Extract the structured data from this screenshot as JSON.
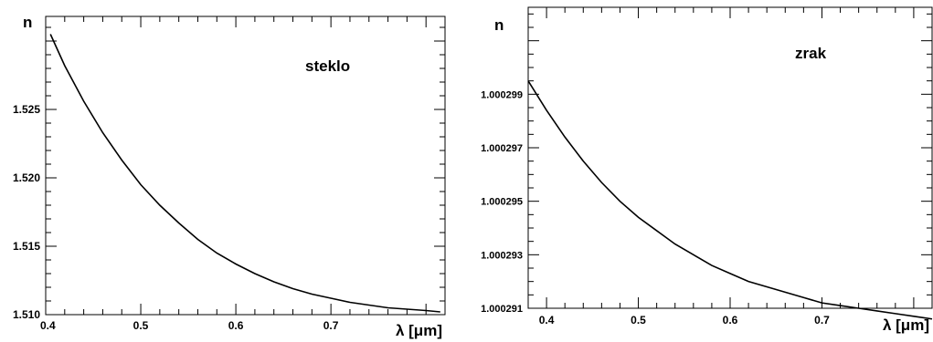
{
  "chart_data": [
    {
      "type": "line",
      "title": "",
      "annotation": "steklo",
      "xlabel": "λ [μm]",
      "ylabel": "n",
      "xlim": [
        0.4,
        0.82
      ],
      "ylim": [
        1.51,
        1.5318
      ],
      "x_ticks": [
        "0.4",
        "0.5",
        "0.6",
        "0.7"
      ],
      "y_ticks": [
        "1.510",
        "1.515",
        "1.520",
        "1.525"
      ],
      "grid": false,
      "series": [
        {
          "x": [
            0.405,
            0.42,
            0.44,
            0.46,
            0.48,
            0.5,
            0.52,
            0.54,
            0.56,
            0.58,
            0.6,
            0.62,
            0.64,
            0.66,
            0.68,
            0.7,
            0.72,
            0.74,
            0.76,
            0.78,
            0.8,
            0.815
          ],
          "y": [
            1.5305,
            1.5282,
            1.5256,
            1.5233,
            1.5213,
            1.5195,
            1.518,
            1.5167,
            1.5155,
            1.5145,
            1.5137,
            1.513,
            1.5124,
            1.5119,
            1.5115,
            1.5112,
            1.5109,
            1.5107,
            1.5105,
            1.5104,
            1.5103,
            1.5102
          ]
        }
      ]
    },
    {
      "type": "line",
      "title": "",
      "annotation": "zrak",
      "xlabel": "λ [μm]",
      "ylabel": "n",
      "xlim": [
        0.38,
        0.82
      ],
      "ylim": [
        1.000291,
        1.00030225
      ],
      "x_ticks": [
        "0.4",
        "0.5",
        "0.6",
        "0.7"
      ],
      "y_ticks": [
        "1.000291",
        "1.000293",
        "1.000295",
        "1.000297",
        "1.000299"
      ],
      "grid": false,
      "series": [
        {
          "x": [
            0.38,
            0.4,
            0.42,
            0.44,
            0.46,
            0.48,
            0.5,
            0.52,
            0.54,
            0.56,
            0.58,
            0.6,
            0.62,
            0.64,
            0.66,
            0.68,
            0.7,
            0.72,
            0.74,
            0.76,
            0.78,
            0.8,
            0.82
          ],
          "y": [
            1.0002995,
            1.0002984,
            1.0002974,
            1.0002965,
            1.0002957,
            1.000295,
            1.0002944,
            1.0002939,
            1.0002934,
            1.000293,
            1.0002926,
            1.0002923,
            1.000292,
            1.0002918,
            1.0002916,
            1.0002914,
            1.0002912,
            1.0002911,
            1.000291,
            1.0002909,
            1.0002908,
            1.0002907,
            1.0002906
          ]
        }
      ]
    }
  ]
}
